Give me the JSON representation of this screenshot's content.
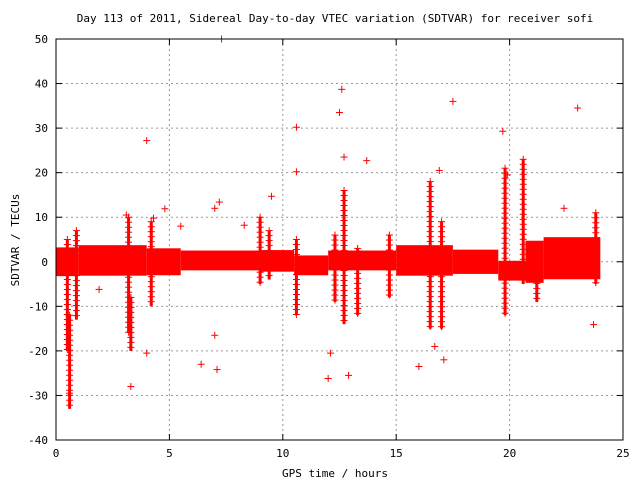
{
  "chart_data": {
    "type": "scatter",
    "title": "Day 113 of 2011, Sidereal Day-to-day VTEC variation (SDTVAR) for receiver sofi",
    "xlabel": "GPS time / hours",
    "ylabel": "SDTVAR / TECUs",
    "xlim": [
      0,
      25
    ],
    "ylim": [
      -40,
      50
    ],
    "xticks": [
      0,
      5,
      10,
      15,
      20,
      25
    ],
    "yticks": [
      -40,
      -30,
      -20,
      -10,
      0,
      10,
      20,
      30,
      40,
      50
    ],
    "grid": true,
    "marker": "+",
    "color": "#ff0000",
    "band_segments": [
      {
        "x": [
          0.0,
          1.0
        ],
        "center": 0.0,
        "half_width": 3.0
      },
      {
        "x": [
          1.0,
          4.0
        ],
        "center": 0.3,
        "half_width": 3.2
      },
      {
        "x": [
          4.0,
          5.5
        ],
        "center": 0.0,
        "half_width": 2.8
      },
      {
        "x": [
          5.5,
          9.0
        ],
        "center": 0.3,
        "half_width": 2.0
      },
      {
        "x": [
          9.0,
          10.5
        ],
        "center": 0.2,
        "half_width": 2.2
      },
      {
        "x": [
          10.5,
          12.0
        ],
        "center": -0.8,
        "half_width": 2.0
      },
      {
        "x": [
          12.0,
          15.0
        ],
        "center": 0.3,
        "half_width": 2.0
      },
      {
        "x": [
          15.0,
          17.5
        ],
        "center": 0.3,
        "half_width": 3.2
      },
      {
        "x": [
          17.5,
          19.5
        ],
        "center": 0.0,
        "half_width": 2.5
      },
      {
        "x": [
          19.5,
          20.7
        ],
        "center": -2.0,
        "half_width": 2.0
      },
      {
        "x": [
          20.7,
          21.5
        ],
        "center": 0.0,
        "half_width": 4.5
      },
      {
        "x": [
          21.5,
          24.0
        ],
        "center": 0.8,
        "half_width": 4.5
      }
    ],
    "vertical_spikes": [
      {
        "x": 0.5,
        "y": [
          -20,
          5
        ]
      },
      {
        "x": 0.6,
        "y": [
          -33,
          -12
        ]
      },
      {
        "x": 0.9,
        "y": [
          -13,
          7
        ]
      },
      {
        "x": 3.2,
        "y": [
          -16,
          10
        ]
      },
      {
        "x": 3.3,
        "y": [
          -20,
          -8
        ]
      },
      {
        "x": 4.2,
        "y": [
          -10,
          9
        ]
      },
      {
        "x": 9.0,
        "y": [
          -5,
          10
        ]
      },
      {
        "x": 9.4,
        "y": [
          -4,
          7
        ]
      },
      {
        "x": 10.6,
        "y": [
          -12,
          5
        ]
      },
      {
        "x": 12.3,
        "y": [
          -9,
          6
        ]
      },
      {
        "x": 12.7,
        "y": [
          -14,
          16
        ]
      },
      {
        "x": 13.3,
        "y": [
          -12,
          3
        ]
      },
      {
        "x": 14.7,
        "y": [
          -8,
          6
        ]
      },
      {
        "x": 16.5,
        "y": [
          -15,
          18
        ]
      },
      {
        "x": 17.0,
        "y": [
          -15,
          9
        ]
      },
      {
        "x": 19.8,
        "y": [
          -12,
          21
        ]
      },
      {
        "x": 20.6,
        "y": [
          -5,
          23
        ]
      },
      {
        "x": 21.2,
        "y": [
          -9,
          3
        ]
      },
      {
        "x": 23.8,
        "y": [
          -5,
          11
        ]
      }
    ],
    "outlier_points": [
      [
        7.3,
        50
      ],
      [
        4.0,
        27.2
      ],
      [
        10.6,
        30.2
      ],
      [
        10.6,
        20.2
      ],
      [
        12.6,
        38.7
      ],
      [
        12.5,
        33.5
      ],
      [
        17.5,
        36
      ],
      [
        19.7,
        29.3
      ],
      [
        23.0,
        34.5
      ],
      [
        0.6,
        -29.5
      ],
      [
        3.3,
        -28
      ],
      [
        7.0,
        -16.5
      ],
      [
        7.1,
        -24.2
      ],
      [
        4.0,
        -20.5
      ],
      [
        6.4,
        -23
      ],
      [
        12.1,
        -20.5
      ],
      [
        12.0,
        -26.2
      ],
      [
        12.9,
        -25.5
      ],
      [
        17.1,
        -22
      ],
      [
        16.7,
        -19
      ],
      [
        16.0,
        -23.5
      ],
      [
        23.7,
        -14.1
      ],
      [
        13.7,
        22.7
      ],
      [
        12.7,
        23.5
      ],
      [
        16.9,
        20.5
      ],
      [
        7.2,
        13.4
      ],
      [
        4.8,
        11.9
      ],
      [
        4.3,
        9.8
      ],
      [
        9.5,
        14.7
      ],
      [
        19.9,
        19.5
      ],
      [
        22.4,
        12
      ],
      [
        1.9,
        -6.2
      ],
      [
        3.1,
        10.5
      ],
      [
        7.0,
        12
      ],
      [
        5.5,
        8
      ],
      [
        8.3,
        8.2
      ]
    ]
  }
}
